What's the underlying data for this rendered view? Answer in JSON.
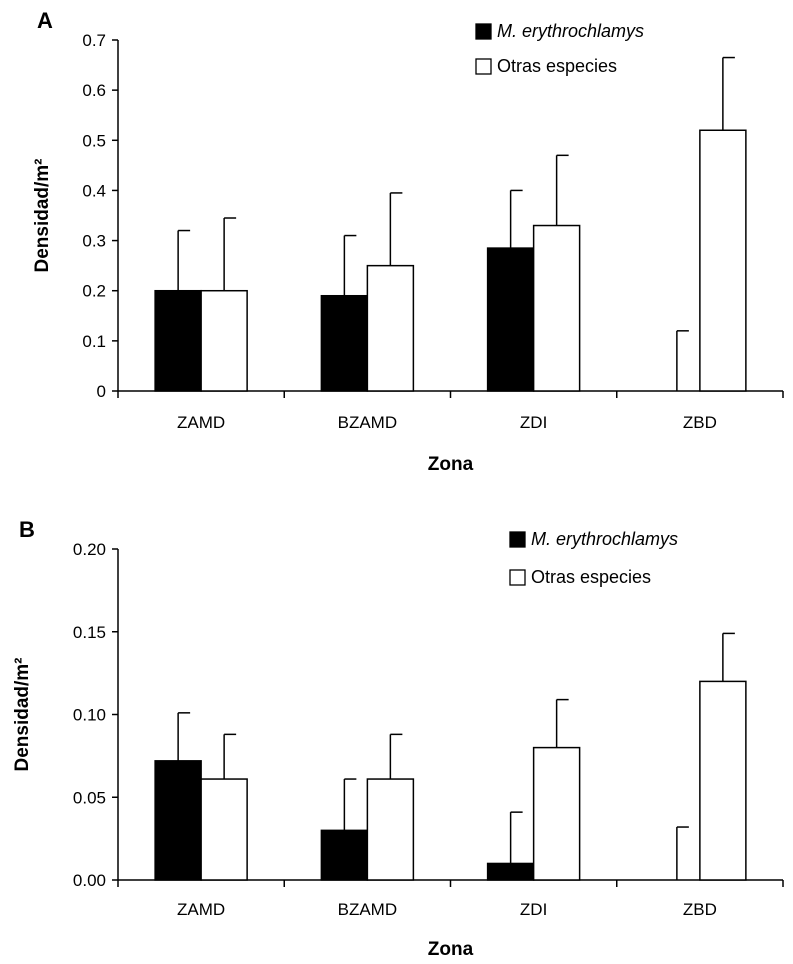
{
  "colors": {
    "series_1": "#000000",
    "series_2": "#ffffff",
    "stroke": "#000000"
  },
  "chart_data": [
    {
      "panel": "A",
      "type": "bar",
      "categories": [
        "ZAMD",
        "BZAMD",
        "ZDI",
        "ZBD"
      ],
      "xlabel": "Zona",
      "ylabel": "Densidad/m²",
      "ylim": [
        0,
        0.7
      ],
      "yticks": [
        "0",
        "0.1",
        "0.2",
        "0.3",
        "0.4",
        "0.5",
        "0.6",
        "0.7"
      ],
      "grid": false,
      "legend_position": "top-right",
      "series": [
        {
          "name": "M. erythrochlamys",
          "values": [
            0.2,
            0.19,
            0.285,
            0.0
          ],
          "error_upper": [
            0.32,
            0.31,
            0.4,
            0.12
          ]
        },
        {
          "name": "Otras especies",
          "values": [
            0.2,
            0.25,
            0.33,
            0.52
          ],
          "error_upper": [
            0.345,
            0.395,
            0.47,
            0.665
          ]
        }
      ]
    },
    {
      "panel": "B",
      "type": "bar",
      "categories": [
        "ZAMD",
        "BZAMD",
        "ZDI",
        "ZBD"
      ],
      "xlabel": "Zona",
      "ylabel": "Densidad/m²",
      "ylim": [
        0,
        0.2
      ],
      "yticks": [
        "0.00",
        "0.05",
        "0.10",
        "0.15",
        "0.20"
      ],
      "grid": false,
      "legend_position": "top-right",
      "series": [
        {
          "name": "M. erythrochlamys",
          "values": [
            0.072,
            0.03,
            0.01,
            0.0
          ],
          "error_upper": [
            0.101,
            0.061,
            0.041,
            0.032
          ]
        },
        {
          "name": "Otras especies",
          "values": [
            0.061,
            0.061,
            0.08,
            0.12
          ],
          "error_upper": [
            0.088,
            0.088,
            0.109,
            0.149
          ]
        }
      ]
    }
  ]
}
